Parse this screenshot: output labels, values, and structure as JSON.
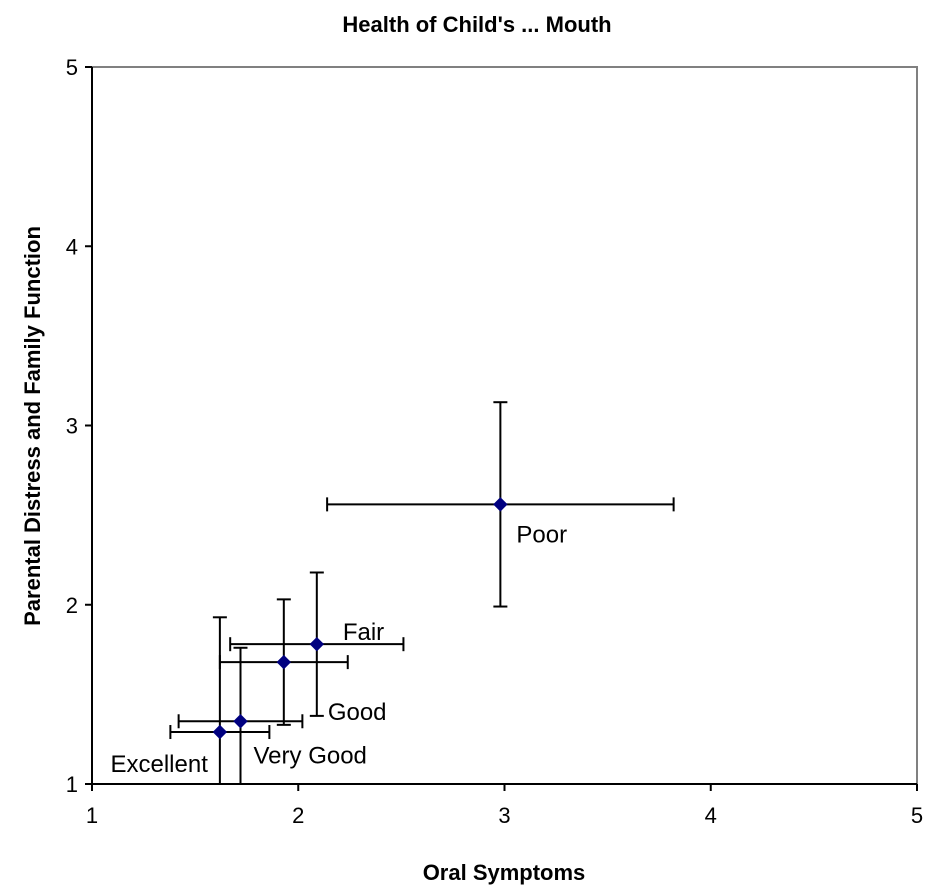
{
  "chart_data": {
    "type": "scatter",
    "title": "Health of Child's ... Mouth",
    "xlabel": "Oral Symptoms",
    "ylabel": "Parental Distress and Family Function",
    "xlim": [
      1,
      5
    ],
    "ylim": [
      1,
      5
    ],
    "xticks": [
      "1",
      "2",
      "3",
      "4",
      "5"
    ],
    "yticks": [
      "1",
      "2",
      "3",
      "4",
      "5"
    ],
    "grid": false,
    "legend": "none",
    "marker_color": "#000080",
    "points": [
      {
        "label": "Excellent",
        "x": 1.62,
        "y": 1.29,
        "x_err": 0.24,
        "y_err_low": 0.29,
        "y_err_high": 0.64
      },
      {
        "label": "Very Good",
        "x": 1.72,
        "y": 1.35,
        "x_err": 0.3,
        "y_err_low": 0.35,
        "y_err_high": 0.41
      },
      {
        "label": "Good",
        "x": 1.93,
        "y": 1.68,
        "x_err": 0.31,
        "y_err_low": 0.35,
        "y_err_high": 0.35
      },
      {
        "label": "Fair",
        "x": 2.09,
        "y": 1.78,
        "x_err": 0.42,
        "y_err_low": 0.4,
        "y_err_high": 0.4
      },
      {
        "label": "Poor",
        "x": 2.98,
        "y": 2.56,
        "x_err": 0.84,
        "y_err_low": 0.57,
        "y_err_high": 0.57
      }
    ]
  }
}
